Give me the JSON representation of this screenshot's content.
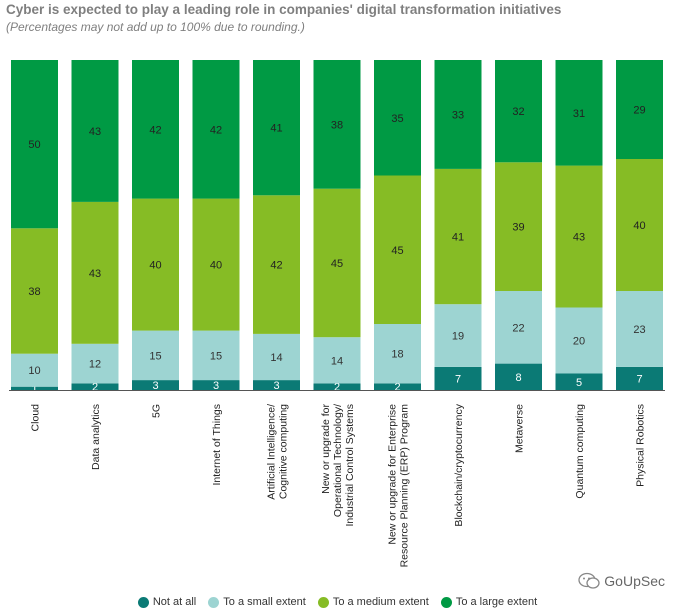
{
  "chart_data": {
    "type": "stacked_bar",
    "title": "Cyber is expected to play a leading role in companies' digital transformation initiatives",
    "subtitle": "(Percentages may not add up to 100% due to rounding.)",
    "categories": [
      "Cloud",
      "Data analytics",
      "5G",
      "Internet of Things",
      "Artificial Intelligence/ Cognitive computing",
      "New or upgrade for Operational Technology/ Industrial Control Systems",
      "New or upgrade for Enterprise Resource Planning (ERP) Program",
      "Blockchain/cryptocurrency",
      "Metaverse",
      "Quantum computing",
      "Physical Robotics"
    ],
    "category_label_lines": [
      [
        "Cloud"
      ],
      [
        "Data analytics"
      ],
      [
        "5G"
      ],
      [
        "Internet of Things"
      ],
      [
        "Artificial Intelligence/",
        "Cognitive computing"
      ],
      [
        "New or upgrade for",
        "Operational Technology/",
        "Industrial Control Systems"
      ],
      [
        "New or upgrade for Enterprise",
        "Resource Planning (ERP) Program"
      ],
      [
        "Blockchain/cryptocurrency"
      ],
      [
        "Metaverse"
      ],
      [
        "Quantum computing"
      ],
      [
        "Physical Robotics"
      ]
    ],
    "series": [
      {
        "name": "Not at all",
        "color": "#0b7a75",
        "values": [
          1,
          2,
          3,
          3,
          3,
          2,
          2,
          7,
          8,
          5,
          7
        ]
      },
      {
        "name": "To a small extent",
        "color": "#9dd4d2",
        "values": [
          10,
          12,
          15,
          15,
          14,
          14,
          18,
          19,
          22,
          20,
          23
        ]
      },
      {
        "name": "To a medium extent",
        "color": "#86bc25",
        "values": [
          38,
          43,
          40,
          40,
          42,
          45,
          45,
          41,
          39,
          43,
          40
        ]
      },
      {
        "name": "To a large extent",
        "color": "#009a44",
        "values": [
          50,
          43,
          42,
          42,
          41,
          38,
          35,
          33,
          32,
          31,
          29
        ]
      }
    ],
    "ylim": [
      0,
      100
    ],
    "grid": false,
    "legend_position": "bottom"
  },
  "watermark": "GoUpSec"
}
